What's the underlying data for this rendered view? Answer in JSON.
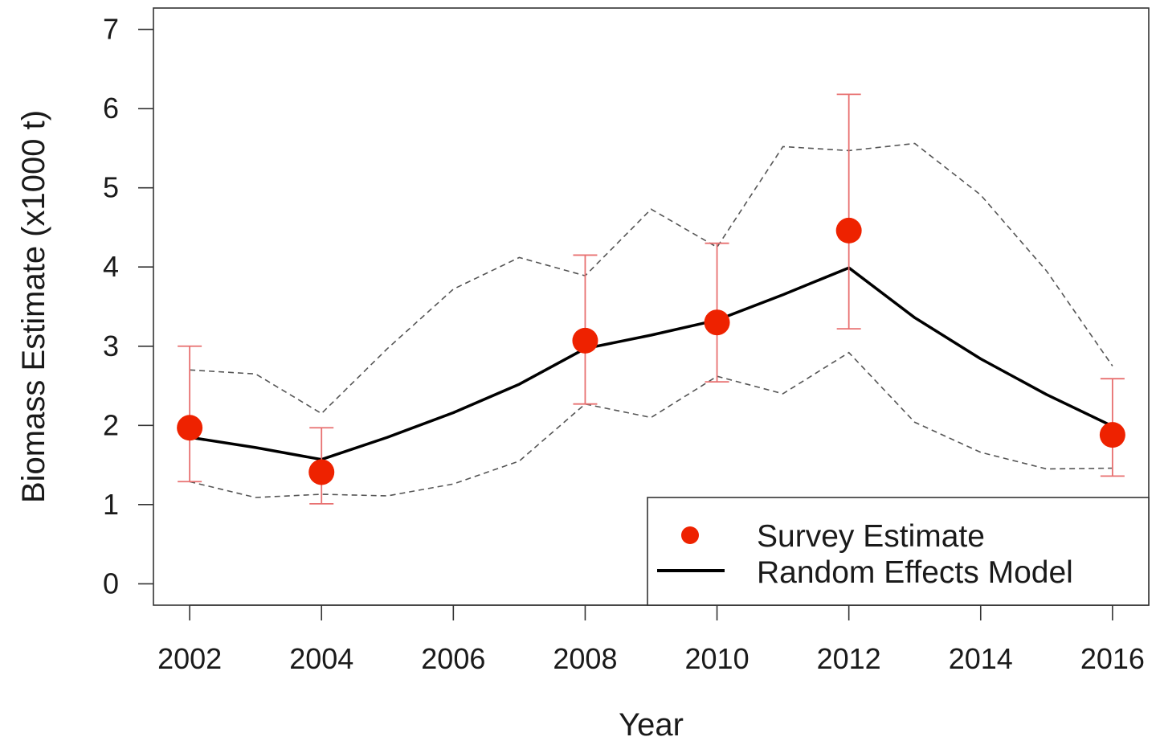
{
  "chart_data": {
    "type": "line",
    "xlabel": "Year",
    "ylabel": "Biomass Estimate (x1000 t)",
    "xlim": [
      2001.45,
      2016.55
    ],
    "ylim": [
      -0.27,
      7.27
    ],
    "x_ticks": [
      2002,
      2004,
      2006,
      2008,
      2010,
      2012,
      2014,
      2016
    ],
    "y_ticks": [
      0,
      1,
      2,
      3,
      4,
      5,
      6,
      7
    ],
    "legend_position": "bottom-right",
    "colors": {
      "survey": "#ee2200",
      "errorbar": "#e87070",
      "model": "#000000",
      "ci": "#555555"
    },
    "series": [
      {
        "name": "Survey Estimate",
        "kind": "points-with-errorbars",
        "x": [
          2002,
          2004,
          2008,
          2010,
          2012,
          2016
        ],
        "y": [
          1.97,
          1.41,
          3.07,
          3.3,
          4.46,
          1.88
        ],
        "lower": [
          1.29,
          1.01,
          2.27,
          2.55,
          3.22,
          1.36
        ],
        "upper": [
          3.0,
          1.97,
          4.15,
          4.3,
          6.18,
          2.59
        ]
      },
      {
        "name": "Random Effects Model",
        "kind": "line",
        "x": [
          2002,
          2003,
          2004,
          2005,
          2006,
          2007,
          2008,
          2009,
          2010,
          2011,
          2012,
          2013,
          2014,
          2015,
          2016
        ],
        "y": [
          1.85,
          1.72,
          1.57,
          1.85,
          2.16,
          2.52,
          2.97,
          3.14,
          3.33,
          3.65,
          3.99,
          3.36,
          2.84,
          2.39,
          1.99
        ]
      },
      {
        "kind": "dashed-upper",
        "x": [
          2002,
          2003,
          2004,
          2005,
          2006,
          2007,
          2008,
          2009,
          2010,
          2011,
          2012,
          2013,
          2014,
          2015,
          2016
        ],
        "y": [
          2.7,
          2.65,
          2.15,
          2.97,
          3.72,
          4.12,
          3.89,
          4.73,
          4.25,
          5.52,
          5.47,
          5.56,
          4.91,
          3.95,
          2.75
        ]
      },
      {
        "kind": "dashed-lower",
        "x": [
          2002,
          2003,
          2004,
          2005,
          2006,
          2007,
          2008,
          2009,
          2010,
          2011,
          2012,
          2013,
          2014,
          2015,
          2016
        ],
        "y": [
          1.29,
          1.09,
          1.13,
          1.11,
          1.26,
          1.55,
          2.27,
          2.1,
          2.62,
          2.4,
          2.92,
          2.04,
          1.66,
          1.45,
          1.46
        ]
      }
    ]
  }
}
